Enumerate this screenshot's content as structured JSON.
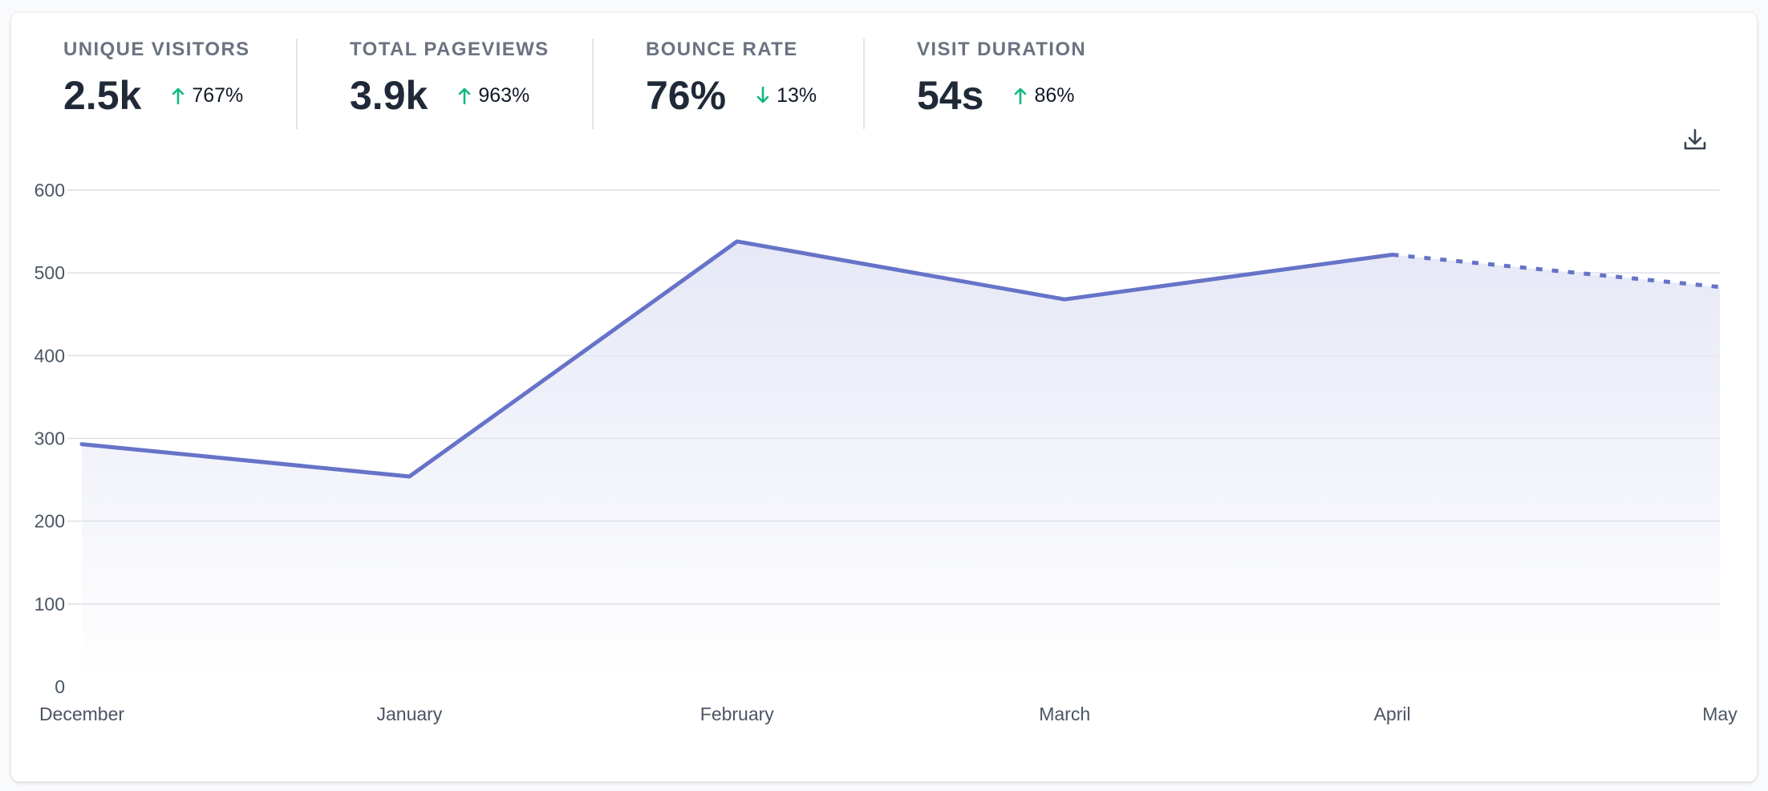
{
  "stats": [
    {
      "label": "UNIQUE VISITORS",
      "value": "2.5k",
      "change": "767%",
      "direction": "up"
    },
    {
      "label": "TOTAL PAGEVIEWS",
      "value": "3.9k",
      "change": "963%",
      "direction": "up"
    },
    {
      "label": "BOUNCE RATE",
      "value": "76%",
      "change": "13%",
      "direction": "down"
    },
    {
      "label": "VISIT DURATION",
      "value": "54s",
      "change": "86%",
      "direction": "up"
    }
  ],
  "toolbar": {
    "download_icon": "download-icon"
  },
  "colors": {
    "line": "#6673c8",
    "area": "#e6e8f6",
    "up_arrow": "#10b981",
    "down_arrow": "#10b981",
    "grid": "#e5e7eb"
  },
  "chart_data": {
    "type": "area",
    "categories": [
      "December",
      "January",
      "February",
      "March",
      "April",
      "May"
    ],
    "series": [
      {
        "values": [
          293,
          254,
          538,
          468,
          522,
          483
        ]
      }
    ],
    "incomplete_from_index": 4,
    "y_ticks": [
      0,
      100,
      200,
      300,
      400,
      500,
      600
    ],
    "ylim": [
      0,
      600
    ],
    "grid": true
  }
}
